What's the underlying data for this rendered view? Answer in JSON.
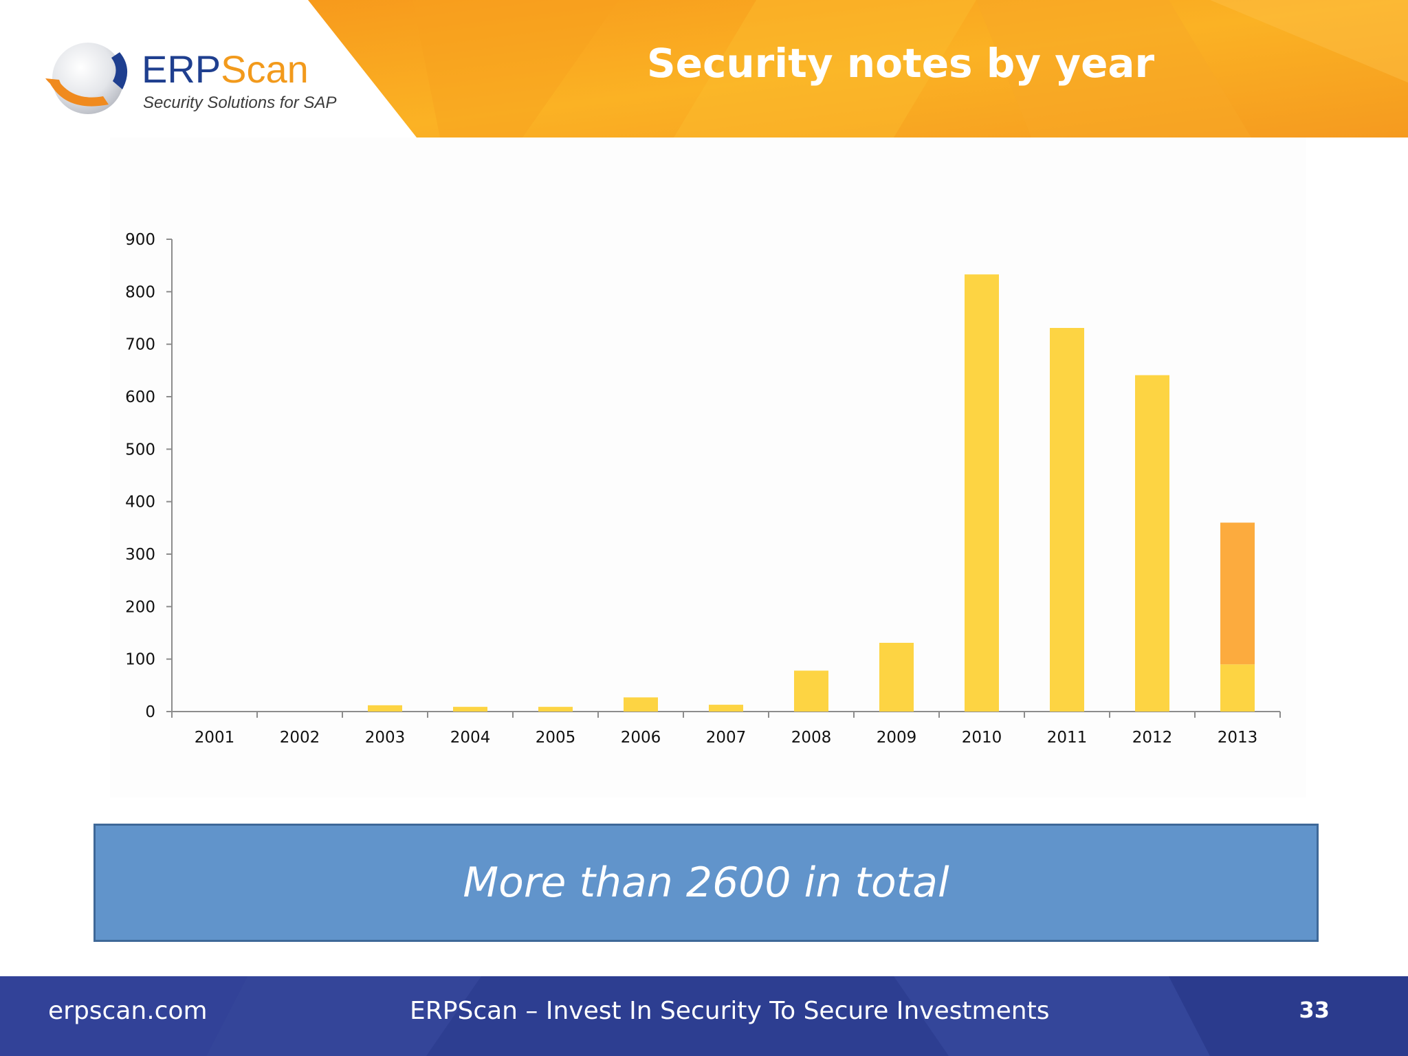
{
  "header": {
    "title": "Security notes by year",
    "logo": {
      "name_part1": "ERP",
      "name_part2": "Scan",
      "tagline": "Security Solutions for SAP"
    }
  },
  "colors": {
    "banner_orange": "#f7a21b",
    "bar_yellow": "#fdd443",
    "bar_orange": "#fcab3e",
    "callout_blue": "#6194cb",
    "footer_blue": "#2d3e91"
  },
  "chart_data": {
    "type": "bar",
    "stacked": true,
    "title": "",
    "xlabel": "",
    "ylabel": "",
    "ylim": [
      0,
      900
    ],
    "yticks": [
      0,
      100,
      200,
      300,
      400,
      500,
      600,
      700,
      800,
      900
    ],
    "grid": false,
    "legend": "none",
    "categories": [
      "2001",
      "2002",
      "2003",
      "2004",
      "2005",
      "2006",
      "2007",
      "2008",
      "2009",
      "2010",
      "2011",
      "2012",
      "2013"
    ],
    "series": [
      {
        "color": "#fdd443",
        "values": [
          0,
          0,
          12,
          9,
          9,
          27,
          13,
          78,
          131,
          833,
          731,
          641,
          90
        ]
      },
      {
        "color": "#fcab3e",
        "values": [
          0,
          0,
          0,
          0,
          0,
          0,
          0,
          0,
          0,
          0,
          0,
          0,
          270
        ]
      }
    ]
  },
  "callout": {
    "text": "More than 2600 in total"
  },
  "footer": {
    "url": "erpscan.com",
    "slogan": "ERPScan – Invest In Security To Secure Investments",
    "page_number": "33"
  }
}
